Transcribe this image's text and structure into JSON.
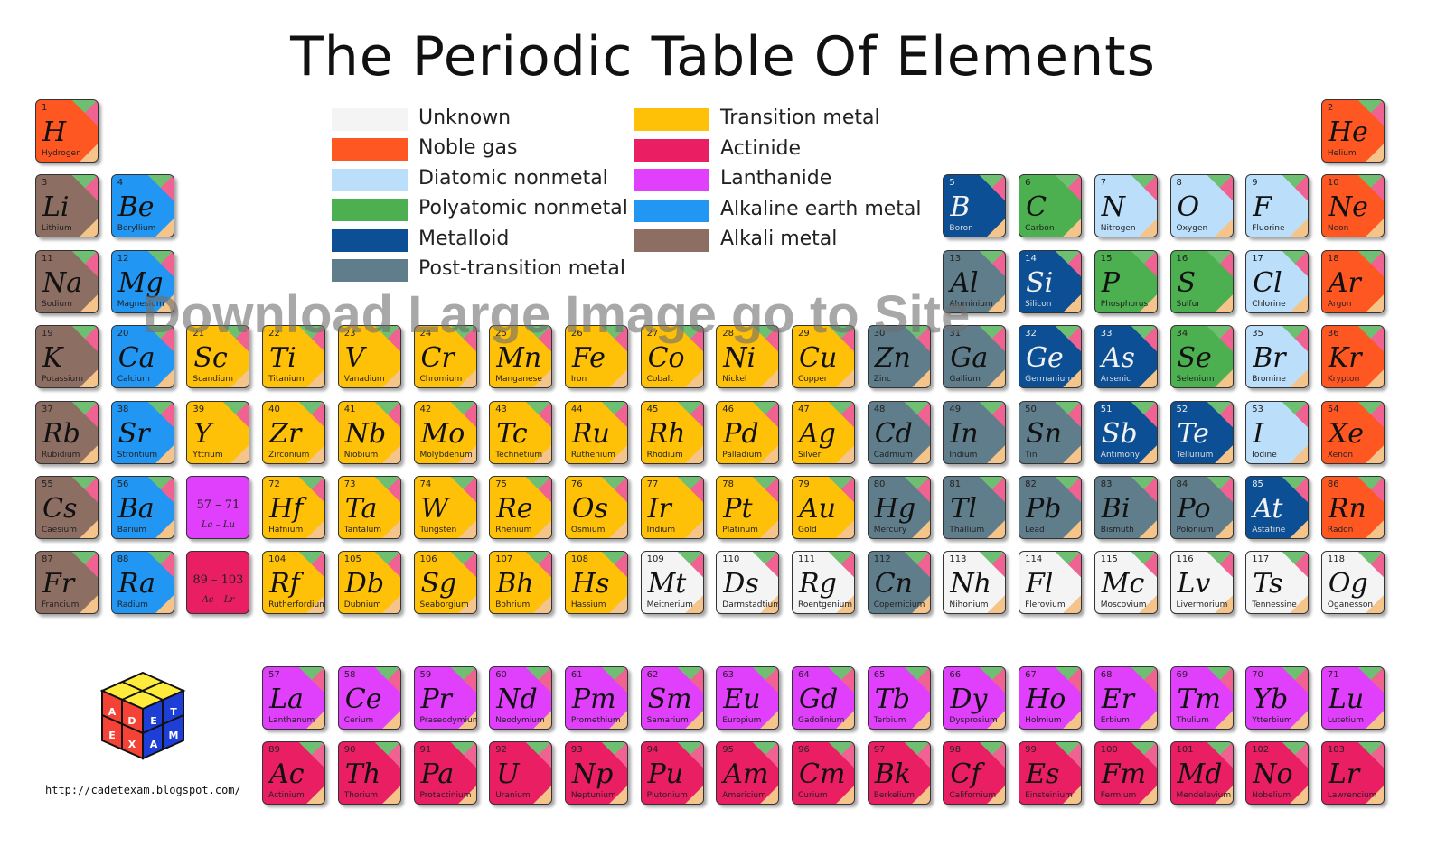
{
  "title": "The Periodic Table Of Elements",
  "watermark": "Download Large Image go to Site",
  "url": "http://cadetexam.blogspot.com/",
  "logo": {
    "letters": [
      "A",
      "D",
      "E",
      "T",
      "E",
      "X",
      "A",
      "M"
    ]
  },
  "colors": {
    "unknown": "#f4f4f4",
    "noble": "#ff5722",
    "diatomic": "#bbdefb",
    "polyatomic": "#4caf50",
    "metalloid": "#0d4f94",
    "post": "#607d8b",
    "transition": "#ffc107",
    "actinide": "#e91e63",
    "lanthanide": "#e040fb",
    "alkaline": "#2196f3",
    "alkali": "#8d6e63"
  },
  "legend": [
    {
      "key": "unknown",
      "label": "Unknown"
    },
    {
      "key": "noble",
      "label": "Noble gas"
    },
    {
      "key": "diatomic",
      "label": "Diatomic nonmetal"
    },
    {
      "key": "polyatomic",
      "label": "Polyatomic nonmetal"
    },
    {
      "key": "metalloid",
      "label": "Metalloid"
    },
    {
      "key": "post",
      "label": "Post-transition metal"
    },
    {
      "key": "transition",
      "label": "Transition metal"
    },
    {
      "key": "actinide",
      "label": "Actinide"
    },
    {
      "key": "lanthanide",
      "label": "Lanthanide"
    },
    {
      "key": "alkaline",
      "label": "Alkaline earth metal"
    },
    {
      "key": "alkali",
      "label": "Alkali metal"
    }
  ],
  "placeholders": [
    {
      "row": 6,
      "col": 3,
      "cat": "lanthanide",
      "range": "57 – 71",
      "sub": "La – Lu"
    },
    {
      "row": 7,
      "col": 3,
      "cat": "actinide",
      "range": "89 – 103",
      "sub": "Ac – Lr"
    }
  ],
  "elements": [
    {
      "n": 1,
      "s": "H",
      "name": "Hydrogen",
      "cat": "noble",
      "row": 1,
      "col": 1
    },
    {
      "n": 2,
      "s": "He",
      "name": "Helium",
      "cat": "noble",
      "row": 1,
      "col": 18
    },
    {
      "n": 3,
      "s": "Li",
      "name": "Lithium",
      "cat": "alkali",
      "row": 2,
      "col": 1
    },
    {
      "n": 4,
      "s": "Be",
      "name": "Beryllium",
      "cat": "alkaline",
      "row": 2,
      "col": 2
    },
    {
      "n": 5,
      "s": "B",
      "name": "Boron",
      "cat": "metalloid",
      "row": 2,
      "col": 13
    },
    {
      "n": 6,
      "s": "C",
      "name": "Carbon",
      "cat": "polyatomic",
      "row": 2,
      "col": 14
    },
    {
      "n": 7,
      "s": "N",
      "name": "Nitrogen",
      "cat": "diatomic",
      "row": 2,
      "col": 15
    },
    {
      "n": 8,
      "s": "O",
      "name": "Oxygen",
      "cat": "diatomic",
      "row": 2,
      "col": 16
    },
    {
      "n": 9,
      "s": "F",
      "name": "Fluorine",
      "cat": "diatomic",
      "row": 2,
      "col": 17
    },
    {
      "n": 10,
      "s": "Ne",
      "name": "Neon",
      "cat": "noble",
      "row": 2,
      "col": 18
    },
    {
      "n": 11,
      "s": "Na",
      "name": "Sodium",
      "cat": "alkali",
      "row": 3,
      "col": 1
    },
    {
      "n": 12,
      "s": "Mg",
      "name": "Magnesium",
      "cat": "alkaline",
      "row": 3,
      "col": 2
    },
    {
      "n": 13,
      "s": "Al",
      "name": "Aluminium",
      "cat": "post",
      "row": 3,
      "col": 13
    },
    {
      "n": 14,
      "s": "Si",
      "name": "Silicon",
      "cat": "metalloid",
      "row": 3,
      "col": 14
    },
    {
      "n": 15,
      "s": "P",
      "name": "Phosphorus",
      "cat": "polyatomic",
      "row": 3,
      "col": 15
    },
    {
      "n": 16,
      "s": "S",
      "name": "Sulfur",
      "cat": "polyatomic",
      "row": 3,
      "col": 16
    },
    {
      "n": 17,
      "s": "Cl",
      "name": "Chlorine",
      "cat": "diatomic",
      "row": 3,
      "col": 17
    },
    {
      "n": 18,
      "s": "Ar",
      "name": "Argon",
      "cat": "noble",
      "row": 3,
      "col": 18
    },
    {
      "n": 19,
      "s": "K",
      "name": "Potassium",
      "cat": "alkali",
      "row": 4,
      "col": 1
    },
    {
      "n": 20,
      "s": "Ca",
      "name": "Calcium",
      "cat": "alkaline",
      "row": 4,
      "col": 2
    },
    {
      "n": 21,
      "s": "Sc",
      "name": "Scandium",
      "cat": "transition",
      "row": 4,
      "col": 3
    },
    {
      "n": 22,
      "s": "Ti",
      "name": "Titanium",
      "cat": "transition",
      "row": 4,
      "col": 4
    },
    {
      "n": 23,
      "s": "V",
      "name": "Vanadium",
      "cat": "transition",
      "row": 4,
      "col": 5
    },
    {
      "n": 24,
      "s": "Cr",
      "name": "Chromium",
      "cat": "transition",
      "row": 4,
      "col": 6
    },
    {
      "n": 25,
      "s": "Mn",
      "name": "Manganese",
      "cat": "transition",
      "row": 4,
      "col": 7
    },
    {
      "n": 26,
      "s": "Fe",
      "name": "Iron",
      "cat": "transition",
      "row": 4,
      "col": 8
    },
    {
      "n": 27,
      "s": "Co",
      "name": "Cobalt",
      "cat": "transition",
      "row": 4,
      "col": 9
    },
    {
      "n": 28,
      "s": "Ni",
      "name": "Nickel",
      "cat": "transition",
      "row": 4,
      "col": 10
    },
    {
      "n": 29,
      "s": "Cu",
      "name": "Copper",
      "cat": "transition",
      "row": 4,
      "col": 11
    },
    {
      "n": 30,
      "s": "Zn",
      "name": "Zinc",
      "cat": "post",
      "row": 4,
      "col": 12
    },
    {
      "n": 31,
      "s": "Ga",
      "name": "Gallium",
      "cat": "post",
      "row": 4,
      "col": 13
    },
    {
      "n": 32,
      "s": "Ge",
      "name": "Germanium",
      "cat": "metalloid",
      "row": 4,
      "col": 14
    },
    {
      "n": 33,
      "s": "As",
      "name": "Arsenic",
      "cat": "metalloid",
      "row": 4,
      "col": 15
    },
    {
      "n": 34,
      "s": "Se",
      "name": "Selenium",
      "cat": "polyatomic",
      "row": 4,
      "col": 16
    },
    {
      "n": 35,
      "s": "Br",
      "name": "Bromine",
      "cat": "diatomic",
      "row": 4,
      "col": 17
    },
    {
      "n": 36,
      "s": "Kr",
      "name": "Krypton",
      "cat": "noble",
      "row": 4,
      "col": 18
    },
    {
      "n": 37,
      "s": "Rb",
      "name": "Rubidium",
      "cat": "alkali",
      "row": 5,
      "col": 1
    },
    {
      "n": 38,
      "s": "Sr",
      "name": "Strontium",
      "cat": "alkaline",
      "row": 5,
      "col": 2
    },
    {
      "n": 39,
      "s": "Y",
      "name": "Yttrium",
      "cat": "transition",
      "row": 5,
      "col": 3
    },
    {
      "n": 40,
      "s": "Zr",
      "name": "Zirconium",
      "cat": "transition",
      "row": 5,
      "col": 4
    },
    {
      "n": 41,
      "s": "Nb",
      "name": "Niobium",
      "cat": "transition",
      "row": 5,
      "col": 5
    },
    {
      "n": 42,
      "s": "Mo",
      "name": "Molybdenum",
      "cat": "transition",
      "row": 5,
      "col": 6
    },
    {
      "n": 43,
      "s": "Tc",
      "name": "Technetium",
      "cat": "transition",
      "row": 5,
      "col": 7
    },
    {
      "n": 44,
      "s": "Ru",
      "name": "Ruthenium",
      "cat": "transition",
      "row": 5,
      "col": 8
    },
    {
      "n": 45,
      "s": "Rh",
      "name": "Rhodium",
      "cat": "transition",
      "row": 5,
      "col": 9
    },
    {
      "n": 46,
      "s": "Pd",
      "name": "Palladium",
      "cat": "transition",
      "row": 5,
      "col": 10
    },
    {
      "n": 47,
      "s": "Ag",
      "name": "Silver",
      "cat": "transition",
      "row": 5,
      "col": 11
    },
    {
      "n": 48,
      "s": "Cd",
      "name": "Cadmium",
      "cat": "post",
      "row": 5,
      "col": 12
    },
    {
      "n": 49,
      "s": "In",
      "name": "Indium",
      "cat": "post",
      "row": 5,
      "col": 13
    },
    {
      "n": 50,
      "s": "Sn",
      "name": "Tin",
      "cat": "post",
      "row": 5,
      "col": 14
    },
    {
      "n": 51,
      "s": "Sb",
      "name": "Antimony",
      "cat": "metalloid",
      "row": 5,
      "col": 15
    },
    {
      "n": 52,
      "s": "Te",
      "name": "Tellurium",
      "cat": "metalloid",
      "row": 5,
      "col": 16
    },
    {
      "n": 53,
      "s": "I",
      "name": "Iodine",
      "cat": "diatomic",
      "row": 5,
      "col": 17
    },
    {
      "n": 54,
      "s": "Xe",
      "name": "Xenon",
      "cat": "noble",
      "row": 5,
      "col": 18
    },
    {
      "n": 55,
      "s": "Cs",
      "name": "Caesium",
      "cat": "alkali",
      "row": 6,
      "col": 1
    },
    {
      "n": 56,
      "s": "Ba",
      "name": "Barium",
      "cat": "alkaline",
      "row": 6,
      "col": 2
    },
    {
      "n": 72,
      "s": "Hf",
      "name": "Hafnium",
      "cat": "transition",
      "row": 6,
      "col": 4
    },
    {
      "n": 73,
      "s": "Ta",
      "name": "Tantalum",
      "cat": "transition",
      "row": 6,
      "col": 5
    },
    {
      "n": 74,
      "s": "W",
      "name": "Tungsten",
      "cat": "transition",
      "row": 6,
      "col": 6
    },
    {
      "n": 75,
      "s": "Re",
      "name": "Rhenium",
      "cat": "transition",
      "row": 6,
      "col": 7
    },
    {
      "n": 76,
      "s": "Os",
      "name": "Osmium",
      "cat": "transition",
      "row": 6,
      "col": 8
    },
    {
      "n": 77,
      "s": "Ir",
      "name": "Iridium",
      "cat": "transition",
      "row": 6,
      "col": 9
    },
    {
      "n": 78,
      "s": "Pt",
      "name": "Platinum",
      "cat": "transition",
      "row": 6,
      "col": 10
    },
    {
      "n": 79,
      "s": "Au",
      "name": "Gold",
      "cat": "transition",
      "row": 6,
      "col": 11
    },
    {
      "n": 80,
      "s": "Hg",
      "name": "Mercury",
      "cat": "post",
      "row": 6,
      "col": 12
    },
    {
      "n": 81,
      "s": "Tl",
      "name": "Thallium",
      "cat": "post",
      "row": 6,
      "col": 13
    },
    {
      "n": 82,
      "s": "Pb",
      "name": "Lead",
      "cat": "post",
      "row": 6,
      "col": 14
    },
    {
      "n": 83,
      "s": "Bi",
      "name": "Bismuth",
      "cat": "post",
      "row": 6,
      "col": 15
    },
    {
      "n": 84,
      "s": "Po",
      "name": "Polonium",
      "cat": "post",
      "row": 6,
      "col": 16
    },
    {
      "n": 85,
      "s": "At",
      "name": "Astatine",
      "cat": "metalloid",
      "row": 6,
      "col": 17
    },
    {
      "n": 86,
      "s": "Rn",
      "name": "Radon",
      "cat": "noble",
      "row": 6,
      "col": 18
    },
    {
      "n": 87,
      "s": "Fr",
      "name": "Francium",
      "cat": "alkali",
      "row": 7,
      "col": 1
    },
    {
      "n": 88,
      "s": "Ra",
      "name": "Radium",
      "cat": "alkaline",
      "row": 7,
      "col": 2
    },
    {
      "n": 104,
      "s": "Rf",
      "name": "Rutherfordium",
      "cat": "transition",
      "row": 7,
      "col": 4
    },
    {
      "n": 105,
      "s": "Db",
      "name": "Dubnium",
      "cat": "transition",
      "row": 7,
      "col": 5
    },
    {
      "n": 106,
      "s": "Sg",
      "name": "Seaborgium",
      "cat": "transition",
      "row": 7,
      "col": 6
    },
    {
      "n": 107,
      "s": "Bh",
      "name": "Bohrium",
      "cat": "transition",
      "row": 7,
      "col": 7
    },
    {
      "n": 108,
      "s": "Hs",
      "name": "Hassium",
      "cat": "transition",
      "row": 7,
      "col": 8
    },
    {
      "n": 109,
      "s": "Mt",
      "name": "Meitnerium",
      "cat": "unknown",
      "row": 7,
      "col": 9
    },
    {
      "n": 110,
      "s": "Ds",
      "name": "Darmstadtium",
      "cat": "unknown",
      "row": 7,
      "col": 10
    },
    {
      "n": 111,
      "s": "Rg",
      "name": "Roentgenium",
      "cat": "unknown",
      "row": 7,
      "col": 11
    },
    {
      "n": 112,
      "s": "Cn",
      "name": "Copernicium",
      "cat": "post",
      "row": 7,
      "col": 12
    },
    {
      "n": 113,
      "s": "Nh",
      "name": "Nihonium",
      "cat": "unknown",
      "row": 7,
      "col": 13
    },
    {
      "n": 114,
      "s": "Fl",
      "name": "Flerovium",
      "cat": "unknown",
      "row": 7,
      "col": 14
    },
    {
      "n": 115,
      "s": "Mc",
      "name": "Moscovium",
      "cat": "unknown",
      "row": 7,
      "col": 15
    },
    {
      "n": 116,
      "s": "Lv",
      "name": "Livermorium",
      "cat": "unknown",
      "row": 7,
      "col": 16
    },
    {
      "n": 117,
      "s": "Ts",
      "name": "Tennessine",
      "cat": "unknown",
      "row": 7,
      "col": 17
    },
    {
      "n": 118,
      "s": "Og",
      "name": "Oganesson",
      "cat": "unknown",
      "row": 7,
      "col": 18
    },
    {
      "n": 57,
      "s": "La",
      "name": "Lanthanum",
      "cat": "lanthanide",
      "row": 9,
      "col": 4
    },
    {
      "n": 58,
      "s": "Ce",
      "name": "Cerium",
      "cat": "lanthanide",
      "row": 9,
      "col": 5
    },
    {
      "n": 59,
      "s": "Pr",
      "name": "Praseodymium",
      "cat": "lanthanide",
      "row": 9,
      "col": 6
    },
    {
      "n": 60,
      "s": "Nd",
      "name": "Neodymium",
      "cat": "lanthanide",
      "row": 9,
      "col": 7
    },
    {
      "n": 61,
      "s": "Pm",
      "name": "Promethium",
      "cat": "lanthanide",
      "row": 9,
      "col": 8
    },
    {
      "n": 62,
      "s": "Sm",
      "name": "Samarium",
      "cat": "lanthanide",
      "row": 9,
      "col": 9
    },
    {
      "n": 63,
      "s": "Eu",
      "name": "Europium",
      "cat": "lanthanide",
      "row": 9,
      "col": 10
    },
    {
      "n": 64,
      "s": "Gd",
      "name": "Gadolinium",
      "cat": "lanthanide",
      "row": 9,
      "col": 11
    },
    {
      "n": 65,
      "s": "Tb",
      "name": "Terbium",
      "cat": "lanthanide",
      "row": 9,
      "col": 12
    },
    {
      "n": 66,
      "s": "Dy",
      "name": "Dysprosium",
      "cat": "lanthanide",
      "row": 9,
      "col": 13
    },
    {
      "n": 67,
      "s": "Ho",
      "name": "Holmium",
      "cat": "lanthanide",
      "row": 9,
      "col": 14
    },
    {
      "n": 68,
      "s": "Er",
      "name": "Erbium",
      "cat": "lanthanide",
      "row": 9,
      "col": 15
    },
    {
      "n": 69,
      "s": "Tm",
      "name": "Thulium",
      "cat": "lanthanide",
      "row": 9,
      "col": 16
    },
    {
      "n": 70,
      "s": "Yb",
      "name": "Ytterbium",
      "cat": "lanthanide",
      "row": 9,
      "col": 17
    },
    {
      "n": 71,
      "s": "Lu",
      "name": "Lutetium",
      "cat": "lanthanide",
      "row": 9,
      "col": 18
    },
    {
      "n": 89,
      "s": "Ac",
      "name": "Actinium",
      "cat": "actinide",
      "row": 10,
      "col": 4
    },
    {
      "n": 90,
      "s": "Th",
      "name": "Thorium",
      "cat": "actinide",
      "row": 10,
      "col": 5
    },
    {
      "n": 91,
      "s": "Pa",
      "name": "Protactinium",
      "cat": "actinide",
      "row": 10,
      "col": 6
    },
    {
      "n": 92,
      "s": "U",
      "name": "Uranium",
      "cat": "actinide",
      "row": 10,
      "col": 7
    },
    {
      "n": 93,
      "s": "Np",
      "name": "Neptunium",
      "cat": "actinide",
      "row": 10,
      "col": 8
    },
    {
      "n": 94,
      "s": "Pu",
      "name": "Plutonium",
      "cat": "actinide",
      "row": 10,
      "col": 9
    },
    {
      "n": 95,
      "s": "Am",
      "name": "Americium",
      "cat": "actinide",
      "row": 10,
      "col": 10
    },
    {
      "n": 96,
      "s": "Cm",
      "name": "Curium",
      "cat": "actinide",
      "row": 10,
      "col": 11
    },
    {
      "n": 97,
      "s": "Bk",
      "name": "Berkelium",
      "cat": "actinide",
      "row": 10,
      "col": 12
    },
    {
      "n": 98,
      "s": "Cf",
      "name": "Californium",
      "cat": "actinide",
      "row": 10,
      "col": 13
    },
    {
      "n": 99,
      "s": "Es",
      "name": "Einsteinium",
      "cat": "actinide",
      "row": 10,
      "col": 14
    },
    {
      "n": 100,
      "s": "Fm",
      "name": "Fermium",
      "cat": "actinide",
      "row": 10,
      "col": 15
    },
    {
      "n": 101,
      "s": "Md",
      "name": "Mendelevium",
      "cat": "actinide",
      "row": 10,
      "col": 16
    },
    {
      "n": 102,
      "s": "No",
      "name": "Nobelium",
      "cat": "actinide",
      "row": 10,
      "col": 17
    },
    {
      "n": 103,
      "s": "Lr",
      "name": "Lawrencium",
      "cat": "actinide",
      "row": 10,
      "col": 18
    }
  ]
}
